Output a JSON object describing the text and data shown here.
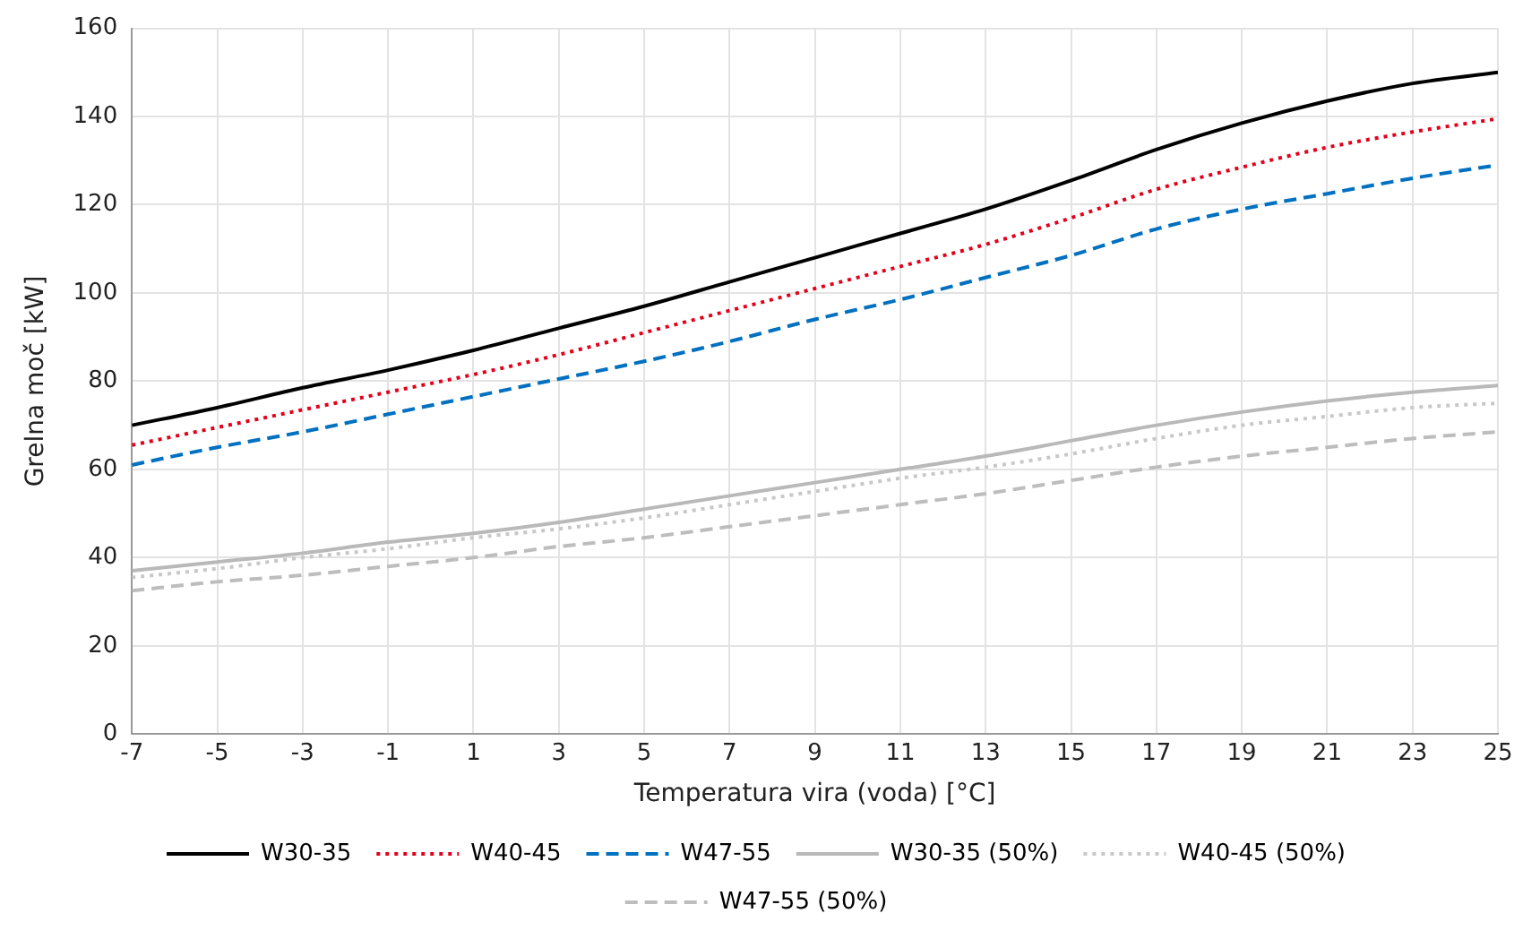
{
  "chart_data": {
    "type": "line",
    "xlabel": "Temperatura vira (voda) [°C]",
    "ylabel": "Grelna moč [kW]",
    "x": [
      -7,
      -5,
      -3,
      -1,
      1,
      3,
      5,
      7,
      9,
      11,
      13,
      15,
      17,
      19,
      21,
      23,
      25
    ],
    "xlim": [
      -7,
      25
    ],
    "xticks": [
      -7,
      -5,
      -3,
      -1,
      1,
      3,
      5,
      7,
      9,
      11,
      13,
      15,
      17,
      19,
      21,
      23,
      25
    ],
    "ylim": [
      0,
      160
    ],
    "yticks": [
      0,
      20,
      40,
      60,
      80,
      100,
      120,
      140,
      160
    ],
    "grid": true,
    "legend": "bottom",
    "marker": "none",
    "series": [
      {
        "name": "W30-35",
        "color": "#000000",
        "line_style": "solid",
        "values": [
          70,
          74,
          78.5,
          82.5,
          87,
          92,
          97,
          102.5,
          108,
          113.5,
          119,
          125.5,
          132.5,
          138.5,
          143.5,
          147.5,
          150
        ]
      },
      {
        "name": "W40-45",
        "color": "#e3001b",
        "line_style": "dotted",
        "values": [
          65.5,
          69.5,
          73.5,
          77.5,
          81.5,
          86,
          91,
          96,
          101,
          106,
          111,
          117,
          123.5,
          128.5,
          133,
          136.5,
          139.5
        ]
      },
      {
        "name": "W47-55",
        "color": "#0070c0",
        "line_style": "dashed",
        "values": [
          61,
          65,
          68.5,
          72.5,
          76.5,
          80.5,
          84.5,
          89,
          94,
          98.5,
          103.5,
          108.5,
          114.5,
          119,
          122.5,
          126,
          129
        ]
      },
      {
        "name": "W30-35 (50%)",
        "color": "#b9b9b9",
        "line_style": "solid",
        "values": [
          37,
          39,
          41,
          43.5,
          45.5,
          48,
          51,
          54,
          57,
          60,
          63,
          66.5,
          70,
          73,
          75.5,
          77.5,
          79
        ]
      },
      {
        "name": "W40-45 (50%)",
        "color": "#c8c8c8",
        "line_style": "dotted",
        "values": [
          35.5,
          37.5,
          40,
          42,
          44.5,
          46.5,
          49,
          52,
          55,
          58,
          60.5,
          63.5,
          67,
          70,
          72,
          74,
          75
        ]
      },
      {
        "name": "W47-55 (50%)",
        "color": "#bdbdbd",
        "line_style": "dashed",
        "values": [
          32.5,
          34.5,
          36,
          38,
          40,
          42.5,
          44.5,
          47,
          49.5,
          52,
          54.5,
          57.5,
          60.5,
          63,
          65,
          67,
          68.5
        ]
      }
    ]
  }
}
